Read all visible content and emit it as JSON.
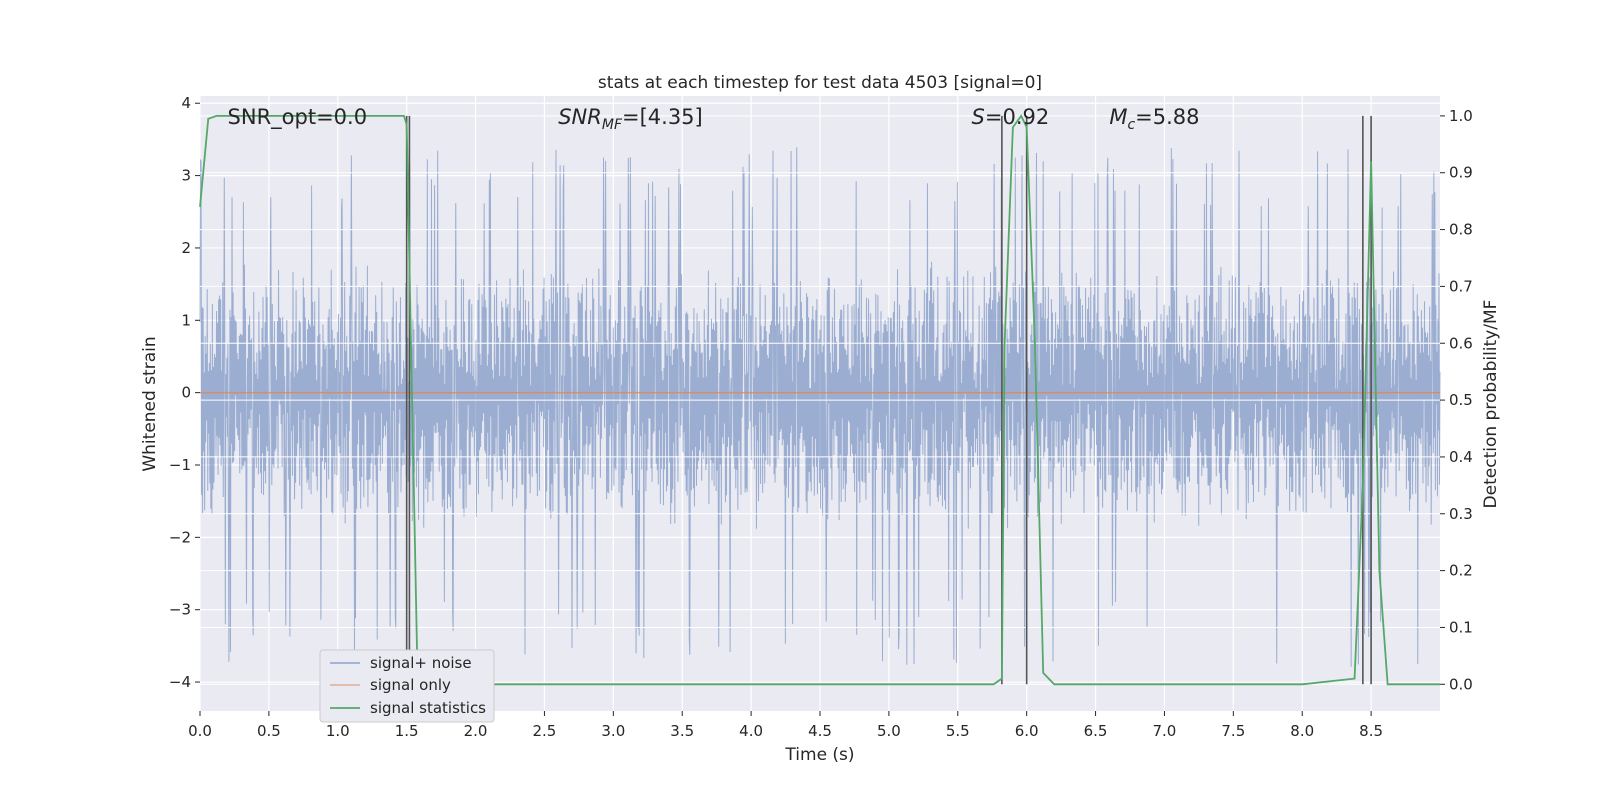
{
  "chart_data": {
    "type": "line",
    "title": "stats at each timestep for test data 4503 [signal=0]",
    "xlabel": "Time (s)",
    "ylabel": "Whitened strain",
    "y2label": "Detection probability/MF",
    "xlim": [
      0.0,
      9.0
    ],
    "ylim": [
      -4.4,
      4.1
    ],
    "y2lim": [
      -0.047,
      1.035
    ],
    "xticks": [
      0.0,
      0.5,
      1.0,
      1.5,
      2.0,
      2.5,
      3.0,
      3.5,
      4.0,
      4.5,
      5.0,
      5.5,
      6.0,
      6.5,
      7.0,
      7.5,
      8.0,
      8.5
    ],
    "xtick_labels": [
      "0.0",
      "0.5",
      "1.0",
      "1.5",
      "2.0",
      "2.5",
      "3.0",
      "3.5",
      "4.0",
      "4.5",
      "5.0",
      "5.5",
      "6.0",
      "6.5",
      "7.0",
      "7.5",
      "8.0",
      "8.5"
    ],
    "yticks": [
      -4,
      -3,
      -2,
      -1,
      0,
      1,
      2,
      3,
      4
    ],
    "ytick_labels": [
      "−4",
      "−3",
      "−2",
      "−1",
      "0",
      "1",
      "2",
      "3",
      "4"
    ],
    "y2ticks": [
      0.0,
      0.1,
      0.2,
      0.3,
      0.4,
      0.5,
      0.6,
      0.7,
      0.8,
      0.9,
      1.0
    ],
    "y2tick_labels": [
      "0.0",
      "0.1",
      "0.2",
      "0.3",
      "0.4",
      "0.5",
      "0.6",
      "0.7",
      "0.8",
      "0.9",
      "1.0"
    ],
    "grid": true,
    "legend_position": "lower-left",
    "annotations": [
      {
        "text": "SNR_opt=0.0",
        "x": 0.2
      },
      {
        "text": "SNR_MF=[4.35]",
        "x": 2.6
      },
      {
        "text": "S=0.92",
        "x": 5.6
      },
      {
        "text": "M_c=5.88",
        "x": 6.6
      }
    ],
    "series": [
      {
        "name": "signal+ noise",
        "color": "#4c72b0",
        "style": "whitened-noise band",
        "typical_range": [
          -1.7,
          1.4
        ],
        "peak_range": [
          -3.8,
          3.4
        ]
      },
      {
        "name": "signal only",
        "color": "#dd8452",
        "x": [
          0.0,
          9.0
        ],
        "y": [
          0.0,
          0.0
        ]
      },
      {
        "name": "signal statistics",
        "color": "#55a868",
        "axis": "right",
        "x": [
          0.0,
          0.06,
          0.12,
          0.2,
          1.4,
          1.48,
          1.5,
          1.58,
          1.6,
          2.0,
          3.0,
          4.0,
          5.0,
          5.76,
          5.82,
          5.84,
          5.9,
          5.96,
          6.0,
          6.06,
          6.12,
          6.2,
          7.0,
          8.0,
          8.38,
          8.44,
          8.5,
          8.56,
          8.62,
          9.0
        ],
        "y": [
          0.84,
          0.995,
          1.0,
          1.0,
          1.0,
          1.0,
          0.985,
          0.0,
          0.0,
          0.0,
          0.0,
          0.0,
          0.0,
          0.0,
          0.01,
          0.6,
          0.98,
          1.0,
          0.98,
          0.6,
          0.02,
          0.0,
          0.0,
          0.0,
          0.01,
          0.35,
          0.92,
          0.2,
          0.0,
          0.0
        ]
      }
    ],
    "vertical_markers": [
      1.5,
      1.52,
      5.82,
      6.0,
      8.44,
      8.5
    ]
  }
}
